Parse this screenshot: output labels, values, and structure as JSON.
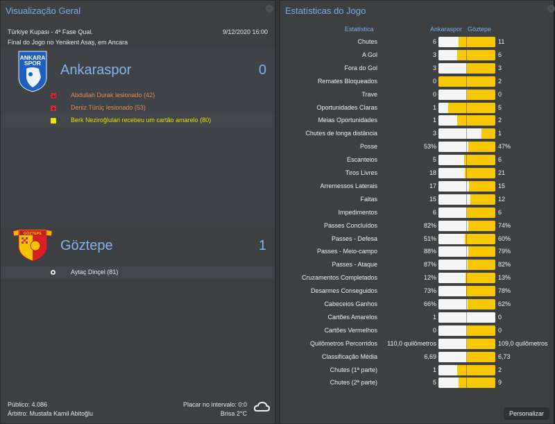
{
  "overview": {
    "title": "Visualização Geral",
    "competition": "Türkiye Kupası - 4ª Fase Qual.",
    "datetime": "9/12/2020 16:00",
    "venue": "Final do Jogo no Yenikent Asaş, em Ancara",
    "home": {
      "name": "Ankaraspor",
      "score": "0",
      "crest_text": [
        "ANKARA",
        "SPOR"
      ],
      "events": [
        {
          "icon": "injury-icon",
          "text": "Abdullah Durak lesionado (42)",
          "color": "#e08a5a"
        },
        {
          "icon": "injury-icon",
          "text": "Deniz Türüç lesionado (53)",
          "color": "#e08a5a"
        },
        {
          "icon": "yellow-card-icon",
          "text": "Berk Neziroğlulari recebeu um cartão amarelo (80)",
          "color": "#e6e200"
        }
      ]
    },
    "away": {
      "name": "Göztepe",
      "score": "1",
      "crest_text": "GÖZTEPE",
      "events": [
        {
          "icon": "goal-ball-icon",
          "text": "Aytaç Dinçel (81)",
          "color": "#e8e8e8"
        }
      ]
    },
    "footer": {
      "attendance": "Público: 4.086",
      "referee": "Árbitro: Mustafa Kamil Abitoğlu",
      "halftime": "Placar no intervalo: 0:0",
      "weather": "Brisa 2°C",
      "weather_icon": "cloud-icon"
    }
  },
  "stats": {
    "title": "Estatísticas do Jogo",
    "col_stat": "Estatística",
    "col_home": "Ankaraspor",
    "col_away": "Göztepe",
    "colors": {
      "home": "#f5f5f5",
      "away": "#f7c800"
    },
    "customize_label": "Personalizar",
    "rows": [
      {
        "label": "Chutes",
        "home": "6",
        "away": "11",
        "hv": 6,
        "av": 11
      },
      {
        "label": "A Gol",
        "home": "3",
        "away": "6",
        "hv": 3,
        "av": 6
      },
      {
        "label": "Fora do Gol",
        "home": "3",
        "away": "3",
        "hv": 3,
        "av": 3
      },
      {
        "label": "Remates Bloqueados",
        "home": "0",
        "away": "2",
        "hv": 0,
        "av": 2
      },
      {
        "label": "Trave",
        "home": "0",
        "away": "0",
        "hv": 0,
        "av": 0
      },
      {
        "label": "Oportunidades Claras",
        "home": "1",
        "away": "5",
        "hv": 1,
        "av": 5
      },
      {
        "label": "Meias Oportunidades",
        "home": "1",
        "away": "2",
        "hv": 1,
        "av": 2
      },
      {
        "label": "Chutes de longa distância",
        "home": "3",
        "away": "1",
        "hv": 3,
        "av": 1
      },
      {
        "label": "Posse",
        "home": "53%",
        "away": "47%",
        "hv": 53,
        "av": 47
      },
      {
        "label": "Escanteios",
        "home": "5",
        "away": "6",
        "hv": 5,
        "av": 6
      },
      {
        "label": "Tiros Livres",
        "home": "18",
        "away": "21",
        "hv": 18,
        "av": 21
      },
      {
        "label": "Arremessos Laterais",
        "home": "17",
        "away": "15",
        "hv": 17,
        "av": 15
      },
      {
        "label": "Faltas",
        "home": "15",
        "away": "12",
        "hv": 15,
        "av": 12
      },
      {
        "label": "Impedimentos",
        "home": "6",
        "away": "6",
        "hv": 6,
        "av": 6
      },
      {
        "label": "Passes Concluídos",
        "home": "82%",
        "away": "74%",
        "hv": 82,
        "av": 74
      },
      {
        "label": "Passes - Defesa",
        "home": "51%",
        "away": "60%",
        "hv": 51,
        "av": 60
      },
      {
        "label": "Passes - Meio-campo",
        "home": "88%",
        "away": "79%",
        "hv": 88,
        "av": 79
      },
      {
        "label": "Passes - Ataque",
        "home": "87%",
        "away": "82%",
        "hv": 87,
        "av": 82
      },
      {
        "label": "Cruzamentos Completados",
        "home": "12%",
        "away": "13%",
        "hv": 12,
        "av": 13
      },
      {
        "label": "Desarmes Conseguidos",
        "home": "73%",
        "away": "78%",
        "hv": 73,
        "av": 78
      },
      {
        "label": "Cabeceios Ganhos",
        "home": "66%",
        "away": "62%",
        "hv": 66,
        "av": 62
      },
      {
        "label": "Cartões Amarelos",
        "home": "1",
        "away": "0",
        "hv": 1,
        "av": 0
      },
      {
        "label": "Cartões Vermelhos",
        "home": "0",
        "away": "0",
        "hv": 0,
        "av": 0
      },
      {
        "label": "Quilômetros Percorridos",
        "home": "110,0 quilômetros",
        "away": "109,0 quilômetros",
        "hv": 110,
        "av": 109
      },
      {
        "label": "Classificação Média",
        "home": "6,69",
        "away": "6,73",
        "hv": 6.69,
        "av": 6.73
      },
      {
        "label": "Chutes (1ª parte)",
        "home": "1",
        "away": "2",
        "hv": 1,
        "av": 2
      },
      {
        "label": "Chutes (2ª parte)",
        "home": "5",
        "away": "9",
        "hv": 5,
        "av": 9
      }
    ]
  }
}
